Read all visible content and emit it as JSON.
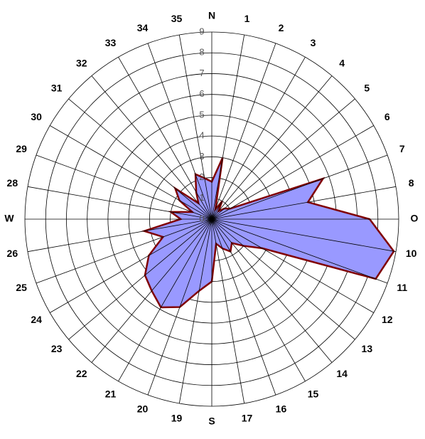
{
  "chart_data": {
    "type": "radar",
    "categories": [
      "N",
      "1",
      "2",
      "3",
      "4",
      "5",
      "6",
      "7",
      "8",
      "O",
      "10",
      "11",
      "12",
      "13",
      "14",
      "15",
      "16",
      "17",
      "S",
      "19",
      "20",
      "21",
      "22",
      "23",
      "24",
      "25",
      "26",
      "W",
      "28",
      "29",
      "30",
      "31",
      "32",
      "33",
      "34",
      "35"
    ],
    "values": [
      1.8,
      3,
      0.5,
      1,
      0.5,
      0.8,
      1,
      5.7,
      4.7,
      7.6,
      8.9,
      8.4,
      2.8,
      2,
      1.5,
      1.8,
      1.5,
      1.2,
      3,
      3.5,
      4.5,
      4.9,
      4.5,
      4.2,
      3.5,
      2.5,
      3.3,
      1.5,
      2,
      1,
      1.8,
      2.3,
      1,
      1.5,
      2.3,
      2
    ],
    "color": "#9999ff",
    "edge_color": "#800000",
    "rlim": [
      0,
      9
    ],
    "rticks": [
      0,
      1,
      2,
      3,
      4,
      5,
      6,
      7,
      8,
      9
    ],
    "grid": true
  }
}
